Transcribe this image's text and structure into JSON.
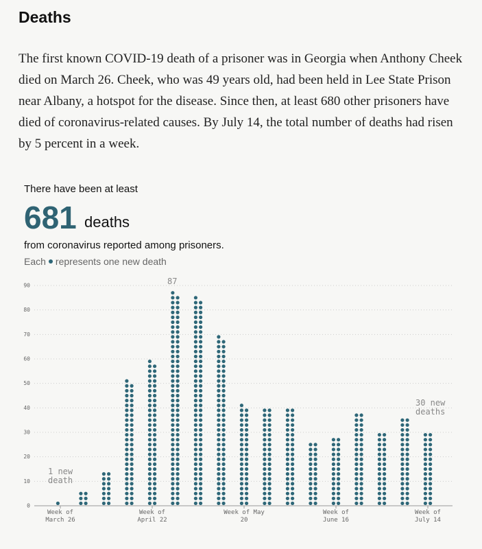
{
  "header": {
    "title": "Deaths",
    "paragraph": "The first known COVID-19 death of a prisoner was in Georgia when Anthony Cheek died on March 26. Cheek, who was 49 years old, had been held in Lee State Prison near Albany, a hotspot for the disease. Since then, at least 680 other prisoners have died of coronavirus-related causes. By July 14, the total number of deaths had risen by 5 percent in a week."
  },
  "chart_data": {
    "type": "dot-column",
    "lead": "There have been at least",
    "total": "681",
    "total_unit": "deaths",
    "subtitle": "from coronavirus reported among prisoners.",
    "legend": {
      "before": "Each",
      "after": "represents one new death"
    },
    "color": "#2e6778",
    "categories": [
      "Week of March 26",
      null,
      null,
      null,
      "Week of April 22",
      null,
      null,
      null,
      "Week of May 20",
      null,
      null,
      null,
      "Week of June 16",
      null,
      null,
      null,
      "Week of July 14"
    ],
    "values": [
      1,
      6,
      14,
      51,
      59,
      87,
      85,
      69,
      41,
      40,
      40,
      26,
      28,
      38,
      30,
      36,
      30
    ],
    "annotations": [
      {
        "text": "1 new death"
      },
      {
        "text": "87"
      },
      {
        "text": "30 new deaths"
      }
    ],
    "ylim": [
      0,
      90
    ],
    "yticks": [
      0,
      10,
      20,
      30,
      40,
      50,
      60,
      70,
      80,
      90
    ],
    "grid": true
  }
}
